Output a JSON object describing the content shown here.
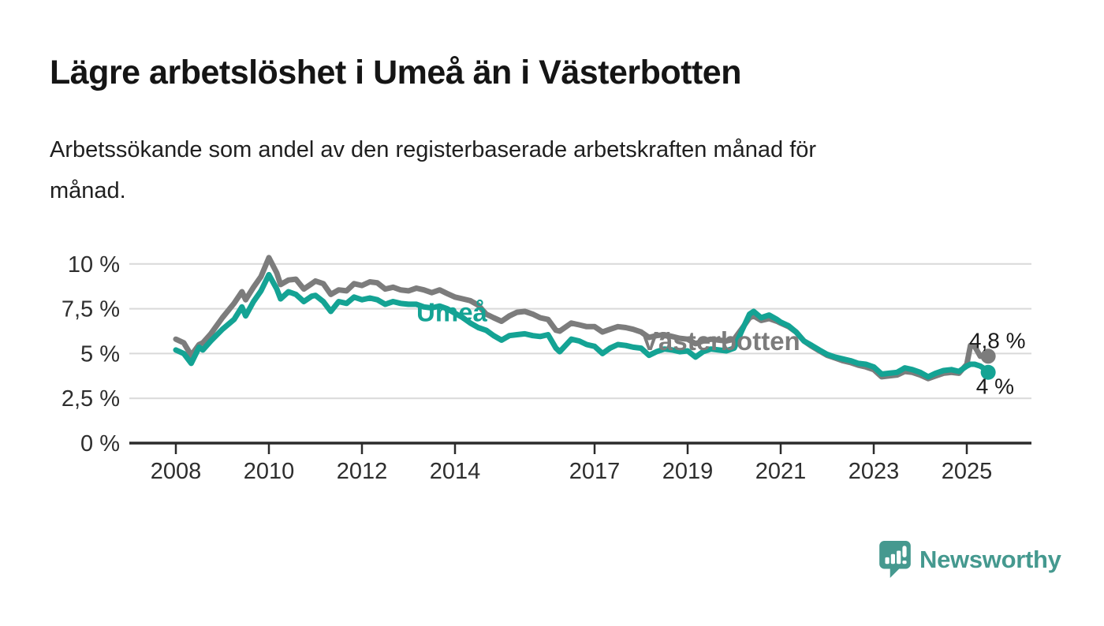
{
  "header": {
    "title": "Lägre arbetslöshet i Umeå än i Västerbotten",
    "subtitle": "Arbetssökande som andel av den registerbaserade arbetskraften månad för månad.",
    "subtitle_lines": [
      "Arbetssökande som andel av den registerbaserade arbetskraften månad för",
      "månad."
    ]
  },
  "branding": {
    "logo_text": "Newsworthy",
    "logo_icon": "bar-chart-speech-bubble-icon",
    "brand_color": "#45998f"
  },
  "colors": {
    "background": "#ffffff",
    "grid": "#d9d9d9",
    "axis": "#2b2b2b",
    "tick_text": "#2e2e2e",
    "annotation_text": "#1a1a1a",
    "umea": "#14a394",
    "vasterbotten": "#7c7c7c"
  },
  "chart_data": {
    "type": "line",
    "xlabel": "",
    "ylabel": "",
    "ylim": [
      0,
      10.8
    ],
    "xlim": [
      2007.0,
      2026.4
    ],
    "grid": "horizontal",
    "legend": "inline-labels",
    "y_ticks": [
      {
        "value": 0,
        "label": "0 %"
      },
      {
        "value": 2.5,
        "label": "2,5 %"
      },
      {
        "value": 5,
        "label": "5 %"
      },
      {
        "value": 7.5,
        "label": "7,5 %"
      },
      {
        "value": 10,
        "label": "10 %"
      }
    ],
    "x_ticks": [
      {
        "value": 2008,
        "label": "2008"
      },
      {
        "value": 2010,
        "label": "2010"
      },
      {
        "value": 2012,
        "label": "2012"
      },
      {
        "value": 2014,
        "label": "2014"
      },
      {
        "value": 2017,
        "label": "2017"
      },
      {
        "value": 2019,
        "label": "2019"
      },
      {
        "value": 2021,
        "label": "2021"
      },
      {
        "value": 2023,
        "label": "2023"
      },
      {
        "value": 2025,
        "label": "2025"
      }
    ],
    "x": [
      2008.0,
      2008.17,
      2008.33,
      2008.5,
      2008.58,
      2008.75,
      2009.0,
      2009.25,
      2009.42,
      2009.5,
      2009.67,
      2009.83,
      2010.0,
      2010.17,
      2010.25,
      2010.42,
      2010.58,
      2010.75,
      2010.92,
      2011.0,
      2011.17,
      2011.33,
      2011.5,
      2011.67,
      2011.83,
      2012.0,
      2012.17,
      2012.33,
      2012.5,
      2012.67,
      2012.83,
      2013.0,
      2013.17,
      2013.33,
      2013.5,
      2013.67,
      2013.83,
      2014.0,
      2014.17,
      2014.33,
      2014.5,
      2014.67,
      2014.83,
      2015.0,
      2015.17,
      2015.33,
      2015.5,
      2015.67,
      2015.83,
      2016.0,
      2016.17,
      2016.25,
      2016.5,
      2016.67,
      2016.83,
      2017.0,
      2017.17,
      2017.33,
      2017.5,
      2017.67,
      2017.83,
      2018.0,
      2018.17,
      2018.33,
      2018.5,
      2018.67,
      2018.83,
      2019.0,
      2019.17,
      2019.33,
      2019.5,
      2019.67,
      2019.83,
      2020.0,
      2020.17,
      2020.33,
      2020.42,
      2020.58,
      2020.75,
      2020.92,
      2021.0,
      2021.17,
      2021.33,
      2021.5,
      2021.67,
      2021.83,
      2022.0,
      2022.17,
      2022.33,
      2022.5,
      2022.67,
      2022.83,
      2023.0,
      2023.17,
      2023.33,
      2023.5,
      2023.67,
      2023.83,
      2024.0,
      2024.17,
      2024.33,
      2024.5,
      2024.67,
      2024.83,
      2025.0,
      2025.08,
      2025.17,
      2025.29,
      2025.38,
      2025.46
    ],
    "series": [
      {
        "name": "Västerbotten",
        "color": "#7c7c7c",
        "inline_label": {
          "text": "Västerbotten",
          "x": 2018.0,
          "y": 5.2
        },
        "end_label": {
          "text": "4,8 %",
          "x": 2025.05,
          "y": 5.3
        },
        "end_value": 4.8,
        "values": [
          5.8,
          5.6,
          4.9,
          5.5,
          5.6,
          6.1,
          7.0,
          7.8,
          8.45,
          8.0,
          8.7,
          9.3,
          10.35,
          9.5,
          8.85,
          9.1,
          9.15,
          8.6,
          8.9,
          9.05,
          8.9,
          8.3,
          8.55,
          8.5,
          8.9,
          8.8,
          9.0,
          8.95,
          8.6,
          8.7,
          8.55,
          8.5,
          8.65,
          8.55,
          8.4,
          8.55,
          8.35,
          8.15,
          8.05,
          7.95,
          7.7,
          7.2,
          7.0,
          6.8,
          7.1,
          7.3,
          7.35,
          7.2,
          7.0,
          6.9,
          6.3,
          6.25,
          6.7,
          6.6,
          6.5,
          6.5,
          6.2,
          6.35,
          6.5,
          6.45,
          6.35,
          6.2,
          5.9,
          6.0,
          6.05,
          5.95,
          5.85,
          5.8,
          5.55,
          5.7,
          5.8,
          5.75,
          5.7,
          5.8,
          6.4,
          7.0,
          7.1,
          6.85,
          6.95,
          6.8,
          6.7,
          6.5,
          6.2,
          5.7,
          5.4,
          5.15,
          4.9,
          4.75,
          4.6,
          4.5,
          4.35,
          4.25,
          4.1,
          3.7,
          3.75,
          3.8,
          4.0,
          3.95,
          3.8,
          3.6,
          3.75,
          3.9,
          3.95,
          3.9,
          4.4,
          5.45,
          5.4,
          4.85,
          4.9,
          4.85
        ]
      },
      {
        "name": "Umeå",
        "color": "#14a394",
        "inline_label": {
          "text": "Umeå",
          "x": 2013.17,
          "y": 6.8
        },
        "end_label": {
          "text": "4 %",
          "x": 2025.2,
          "y": 2.75
        },
        "end_value": 4.0,
        "values": [
          5.2,
          5.0,
          4.45,
          5.35,
          5.2,
          5.7,
          6.35,
          6.9,
          7.6,
          7.1,
          7.9,
          8.5,
          9.4,
          8.6,
          8.05,
          8.45,
          8.3,
          7.9,
          8.2,
          8.25,
          7.9,
          7.35,
          7.9,
          7.8,
          8.15,
          8.0,
          8.1,
          8.0,
          7.75,
          7.9,
          7.8,
          7.75,
          7.75,
          7.6,
          7.55,
          7.65,
          7.5,
          7.25,
          7.0,
          6.7,
          6.45,
          6.3,
          6.0,
          5.75,
          6.0,
          6.05,
          6.1,
          6.0,
          5.95,
          6.05,
          5.3,
          5.1,
          5.8,
          5.7,
          5.5,
          5.4,
          5.0,
          5.3,
          5.5,
          5.45,
          5.35,
          5.3,
          4.9,
          5.1,
          5.25,
          5.2,
          5.1,
          5.15,
          4.8,
          5.1,
          5.25,
          5.2,
          5.15,
          5.3,
          6.3,
          7.2,
          7.35,
          7.0,
          7.15,
          6.9,
          6.75,
          6.55,
          6.2,
          5.7,
          5.45,
          5.2,
          4.95,
          4.8,
          4.7,
          4.6,
          4.45,
          4.4,
          4.25,
          3.85,
          3.9,
          3.95,
          4.2,
          4.1,
          3.95,
          3.7,
          3.9,
          4.05,
          4.1,
          4.0,
          4.3,
          4.4,
          4.4,
          4.3,
          4.15,
          3.95
        ]
      }
    ]
  }
}
